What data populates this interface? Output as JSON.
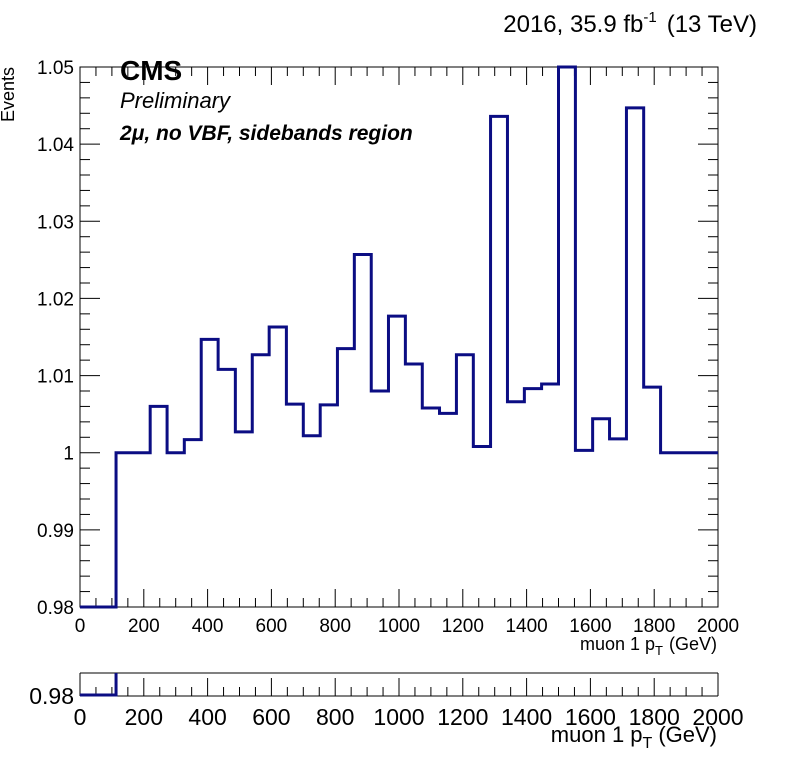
{
  "header": {
    "lumi_prefix": "2016, 35.9 fb",
    "lumi_exponent": "-1",
    "lumi_energy": "(13 TeV)",
    "experiment": "CMS",
    "status": "Preliminary",
    "region_prefix": "2",
    "region_symbol": "μ",
    "region_suffix": ", no VBF, sidebands region"
  },
  "chart_data": [
    {
      "type": "histogram",
      "title": "",
      "xlabel_main": "muon 1 p",
      "xlabel_sub": "T",
      "xlabel_unit": "(GeV)",
      "ylabel": "Events",
      "xlim": [
        0,
        2000
      ],
      "ylim": [
        0.98,
        1.05
      ],
      "x_ticks": [
        0,
        200,
        400,
        600,
        800,
        1000,
        1200,
        1400,
        1600,
        1800,
        2000
      ],
      "y_ticks": [
        0.98,
        0.99,
        1.0,
        1.01,
        1.02,
        1.03,
        1.04,
        1.05
      ],
      "y_tick_labels": [
        "0.98",
        "0.99",
        "1",
        "1.01",
        "1.02",
        "1.03",
        "1.04",
        "1.05"
      ],
      "bin_width": 53.3,
      "bin_edges_start": [
        0,
        113
      ],
      "bins": [
        {
          "x0": 0,
          "x1": 113,
          "y": 0.98
        },
        {
          "x0": 113,
          "x1": 220,
          "y": 1.0
        },
        {
          "x0": 220,
          "x1": 273,
          "y": 1.006
        },
        {
          "x0": 273,
          "x1": 327,
          "y": 1.0
        },
        {
          "x0": 327,
          "x1": 380,
          "y": 1.0017
        },
        {
          "x0": 380,
          "x1": 433,
          "y": 1.0147
        },
        {
          "x0": 433,
          "x1": 487,
          "y": 1.0108
        },
        {
          "x0": 487,
          "x1": 540,
          "y": 1.0027
        },
        {
          "x0": 540,
          "x1": 593,
          "y": 1.0127
        },
        {
          "x0": 593,
          "x1": 647,
          "y": 1.0163
        },
        {
          "x0": 647,
          "x1": 700,
          "y": 1.0063
        },
        {
          "x0": 700,
          "x1": 753,
          "y": 1.0022
        },
        {
          "x0": 753,
          "x1": 807,
          "y": 1.0062
        },
        {
          "x0": 807,
          "x1": 860,
          "y": 1.0135
        },
        {
          "x0": 860,
          "x1": 913,
          "y": 1.0257
        },
        {
          "x0": 913,
          "x1": 967,
          "y": 1.008
        },
        {
          "x0": 967,
          "x1": 1020,
          "y": 1.0177
        },
        {
          "x0": 1020,
          "x1": 1073,
          "y": 1.0115
        },
        {
          "x0": 1073,
          "x1": 1127,
          "y": 1.0058
        },
        {
          "x0": 1127,
          "x1": 1180,
          "y": 1.0051
        },
        {
          "x0": 1180,
          "x1": 1233,
          "y": 1.0127
        },
        {
          "x0": 1233,
          "x1": 1287,
          "y": 1.0008
        },
        {
          "x0": 1287,
          "x1": 1340,
          "y": 1.0436
        },
        {
          "x0": 1340,
          "x1": 1393,
          "y": 1.0066
        },
        {
          "x0": 1393,
          "x1": 1447,
          "y": 1.0083
        },
        {
          "x0": 1447,
          "x1": 1500,
          "y": 1.0089
        },
        {
          "x0": 1500,
          "x1": 1553,
          "y": 1.05
        },
        {
          "x0": 1553,
          "x1": 1607,
          "y": 1.0003
        },
        {
          "x0": 1607,
          "x1": 1660,
          "y": 1.0044
        },
        {
          "x0": 1660,
          "x1": 1713,
          "y": 1.0018
        },
        {
          "x0": 1713,
          "x1": 1767,
          "y": 1.0447
        },
        {
          "x0": 1767,
          "x1": 1820,
          "y": 1.0085
        },
        {
          "x0": 1820,
          "x1": 2000,
          "y": 1.0
        }
      ],
      "color": "#0b0d83"
    },
    {
      "type": "histogram",
      "title": "",
      "xlabel_main": "muon 1 p",
      "xlabel_sub": "T",
      "xlabel_unit": "(GeV)",
      "ylabel": "",
      "xlim": [
        0,
        2000
      ],
      "x_ticks": [
        0,
        200,
        400,
        600,
        800,
        1000,
        1200,
        1400,
        1600,
        1800,
        2000
      ],
      "y_tick_labels": [
        "0.98"
      ],
      "bins": [
        {
          "x0": 0,
          "x1": 113,
          "y": 0.98
        }
      ],
      "color": "#0b0d83"
    }
  ]
}
